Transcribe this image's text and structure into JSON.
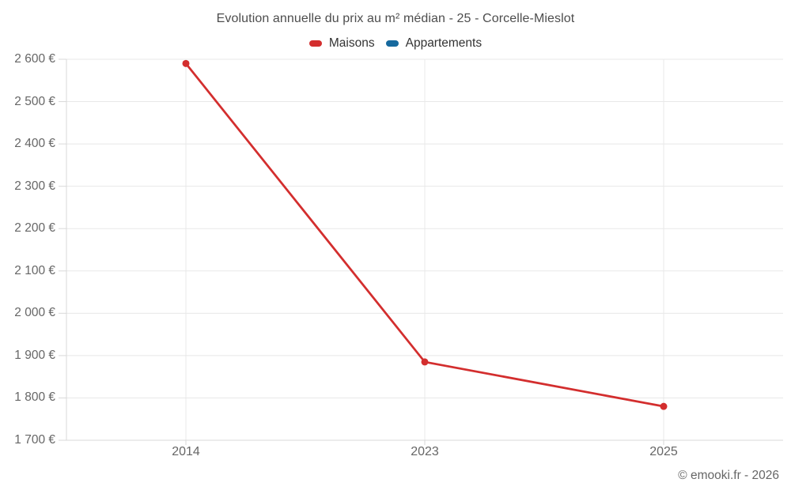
{
  "chart_data": {
    "type": "line",
    "title": "Evolution annuelle du prix au m² médian - 25 - Corcelle-Mieslot",
    "categories": [
      "2014",
      "2023",
      "2025"
    ],
    "series": [
      {
        "name": "Maisons",
        "color": "#d32e2e",
        "values": [
          2590,
          1885,
          1780
        ]
      },
      {
        "name": "Appartements",
        "color": "#16699e",
        "values": []
      }
    ],
    "xlabel": "",
    "ylabel": "",
    "ylim": [
      1700,
      2600
    ],
    "ytick_step": 100,
    "ytick_format": "{value} €",
    "grid": true,
    "legend_position": "top",
    "marker": "circle"
  },
  "footer": {
    "copyright": "© emooki.fr - 2026"
  }
}
